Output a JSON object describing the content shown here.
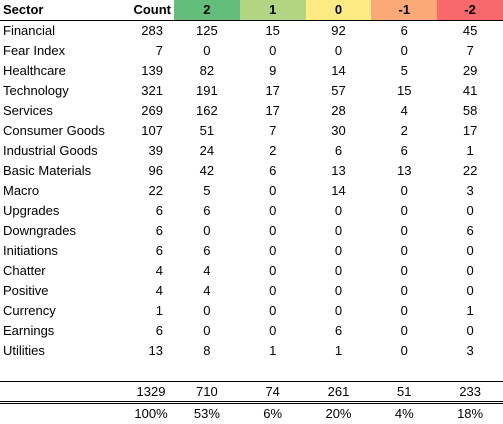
{
  "header": {
    "sector": "Sector",
    "count": "Count",
    "scores": [
      {
        "label": "2",
        "color": "#63be7b"
      },
      {
        "label": "1",
        "color": "#b1d580"
      },
      {
        "label": "0",
        "color": "#ffeb84"
      },
      {
        "label": "-1",
        "color": "#fbaa77"
      },
      {
        "label": "-2",
        "color": "#f8696b"
      }
    ]
  },
  "rows": [
    {
      "sector": "Financial",
      "count": "283",
      "v": [
        "125",
        "15",
        "92",
        "6",
        "45"
      ]
    },
    {
      "sector": "Fear Index",
      "count": "7",
      "v": [
        "0",
        "0",
        "0",
        "0",
        "7"
      ]
    },
    {
      "sector": "Healthcare",
      "count": "139",
      "v": [
        "82",
        "9",
        "14",
        "5",
        "29"
      ]
    },
    {
      "sector": "Technology",
      "count": "321",
      "v": [
        "191",
        "17",
        "57",
        "15",
        "41"
      ]
    },
    {
      "sector": "Services",
      "count": "269",
      "v": [
        "162",
        "17",
        "28",
        "4",
        "58"
      ]
    },
    {
      "sector": "Consumer Goods",
      "count": "107",
      "v": [
        "51",
        "7",
        "30",
        "2",
        "17"
      ]
    },
    {
      "sector": "Industrial Goods",
      "count": "39",
      "v": [
        "24",
        "2",
        "6",
        "6",
        "1"
      ]
    },
    {
      "sector": "Basic Materials",
      "count": "96",
      "v": [
        "42",
        "6",
        "13",
        "13",
        "22"
      ]
    },
    {
      "sector": "Macro",
      "count": "22",
      "v": [
        "5",
        "0",
        "14",
        "0",
        "3"
      ]
    },
    {
      "sector": "Upgrades",
      "count": "6",
      "v": [
        "6",
        "0",
        "0",
        "0",
        "0"
      ]
    },
    {
      "sector": "Downgrades",
      "count": "6",
      "v": [
        "0",
        "0",
        "0",
        "0",
        "6"
      ]
    },
    {
      "sector": "Initiations",
      "count": "6",
      "v": [
        "6",
        "0",
        "0",
        "0",
        "0"
      ]
    },
    {
      "sector": "Chatter",
      "count": "4",
      "v": [
        "4",
        "0",
        "0",
        "0",
        "0"
      ]
    },
    {
      "sector": "Positive",
      "count": "4",
      "v": [
        "4",
        "0",
        "0",
        "0",
        "0"
      ]
    },
    {
      "sector": "Currency",
      "count": "1",
      "v": [
        "0",
        "0",
        "0",
        "0",
        "1"
      ]
    },
    {
      "sector": "Earnings",
      "count": "6",
      "v": [
        "0",
        "0",
        "6",
        "0",
        "0"
      ]
    },
    {
      "sector": "Utilities",
      "count": "13",
      "v": [
        "8",
        "1",
        "1",
        "0",
        "3"
      ]
    }
  ],
  "totals": {
    "count": "1329",
    "v": [
      "710",
      "74",
      "261",
      "51",
      "233"
    ]
  },
  "percents": {
    "count": "100%",
    "v": [
      "53%",
      "6%",
      "20%",
      "4%",
      "18%"
    ]
  }
}
